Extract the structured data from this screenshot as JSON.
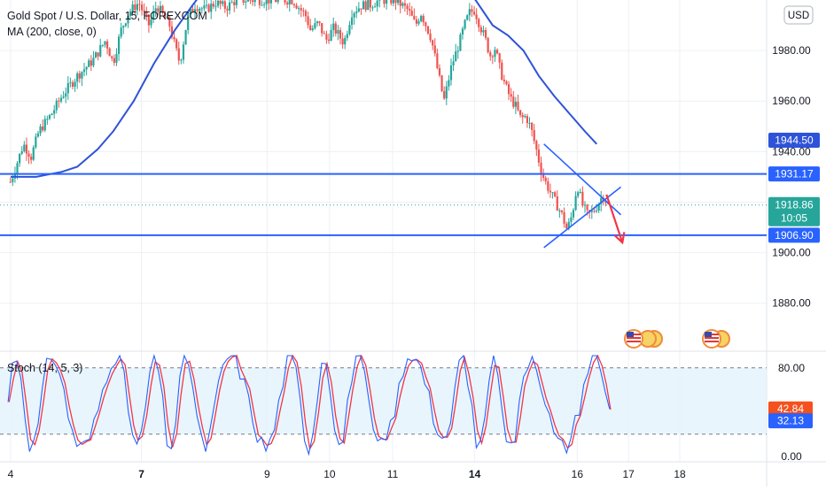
{
  "header": {
    "symbol_title": "Gold Spot / U.S. Dollar, 15, FOREXCOM",
    "indicator_ma": "MA (200, close, 0)",
    "currency_button": "USD"
  },
  "colors": {
    "up": "#26a69a",
    "down": "#ef5350",
    "ma": "#2e53d8",
    "hline": "#2962ff",
    "arrow": "#f23645",
    "stoch_k": "#2962ff",
    "stoch_d": "#f23645",
    "stoch_band": "#e3f2fd",
    "grid": "#eef0f4",
    "axis_text": "#131722"
  },
  "chart_data": [
    {
      "type": "candlestick",
      "title": "Gold Spot / U.S. Dollar, 15, FOREXCOM",
      "price_axis": {
        "ticks": [
          "1980.00",
          "1960.00",
          "1940.00",
          "1920.00",
          "1900.00",
          "1880.00"
        ],
        "ylim": [
          1861,
          2000
        ]
      },
      "time_axis": {
        "ticks": [
          "4",
          "7",
          "9",
          "10",
          "11",
          "14",
          "16",
          "17",
          "18"
        ]
      },
      "horizontal_levels": [
        {
          "label": "1931.17",
          "value": 1931.17
        },
        {
          "label": "1906.90",
          "value": 1906.9
        }
      ],
      "price_labels": {
        "ma_value": "1944.50",
        "last_price": "1918.86",
        "countdown": "10:05",
        "last_value": 1918.86
      },
      "price_path": [
        [
          4.0,
          1928
        ],
        [
          4.1,
          1934
        ],
        [
          4.25,
          1943
        ],
        [
          4.4,
          1938
        ],
        [
          4.55,
          1948
        ],
        [
          4.8,
          1955
        ],
        [
          5.0,
          1962
        ],
        [
          5.3,
          1970
        ],
        [
          5.6,
          1976
        ],
        [
          5.85,
          1984
        ],
        [
          6.0,
          1975
        ],
        [
          6.15,
          1988
        ],
        [
          6.3,
          1995
        ],
        [
          6.5,
          1999
        ],
        [
          6.7,
          1990
        ],
        [
          6.85,
          1998
        ],
        [
          7.0,
          1993
        ],
        [
          7.1,
          1990
        ],
        [
          7.2,
          1982
        ],
        [
          7.3,
          1975
        ],
        [
          7.45,
          1993
        ],
        [
          7.6,
          1998
        ],
        [
          7.8,
          1996
        ],
        [
          8.0,
          1999
        ],
        [
          8.2,
          1997
        ],
        [
          8.4,
          2000
        ],
        [
          9.5,
          2000
        ],
        [
          9.75,
          1994
        ],
        [
          9.85,
          1988
        ],
        [
          10.0,
          1991
        ],
        [
          10.15,
          1984
        ],
        [
          10.3,
          1989
        ],
        [
          10.5,
          1983
        ],
        [
          10.65,
          1995
        ],
        [
          10.85,
          1998
        ],
        [
          11.0,
          1998
        ],
        [
          11.2,
          2000
        ],
        [
          11.5,
          2000
        ],
        [
          11.75,
          1996
        ],
        [
          11.9,
          1990
        ],
        [
          12.0,
          1995
        ],
        [
          12.2,
          1985
        ],
        [
          12.35,
          1970
        ],
        [
          12.45,
          1960
        ],
        [
          12.6,
          1974
        ],
        [
          12.75,
          1983
        ],
        [
          12.85,
          1990
        ],
        [
          12.95,
          1995
        ],
        [
          13.05,
          1996
        ],
        [
          13.15,
          1990
        ],
        [
          13.25,
          1985
        ],
        [
          13.35,
          1978
        ],
        [
          13.45,
          1981
        ],
        [
          13.55,
          1972
        ],
        [
          13.65,
          1966
        ],
        [
          13.75,
          1961
        ],
        [
          13.85,
          1958
        ],
        [
          13.95,
          1953
        ],
        [
          14.05,
          1954
        ],
        [
          14.15,
          1949
        ],
        [
          14.25,
          1941
        ],
        [
          14.35,
          1932
        ],
        [
          14.45,
          1927
        ],
        [
          14.55,
          1923
        ],
        [
          14.65,
          1919
        ],
        [
          14.75,
          1915
        ],
        [
          14.85,
          1909
        ],
        [
          14.95,
          1915
        ],
        [
          15.05,
          1927
        ],
        [
          15.15,
          1919
        ],
        [
          15.25,
          1915
        ],
        [
          15.35,
          1916
        ],
        [
          15.45,
          1919
        ],
        [
          15.55,
          1923
        ],
        [
          15.65,
          1919
        ]
      ],
      "ma_series": [
        [
          4.0,
          1930
        ],
        [
          4.5,
          1930
        ],
        [
          5.0,
          1932
        ],
        [
          5.3,
          1934
        ],
        [
          5.7,
          1941
        ],
        [
          6.0,
          1948
        ],
        [
          6.4,
          1960
        ],
        [
          6.8,
          1975
        ],
        [
          7.2,
          1988
        ],
        [
          7.55,
          1998
        ],
        [
          7.7,
          2002
        ],
        [
          13.0,
          2002
        ],
        [
          13.4,
          1990
        ],
        [
          13.7,
          1986
        ],
        [
          14.0,
          1980
        ],
        [
          14.3,
          1970
        ],
        [
          14.6,
          1962
        ],
        [
          14.9,
          1955
        ],
        [
          15.2,
          1948
        ],
        [
          15.43,
          1943
        ]
      ],
      "trendlines": [
        {
          "from": [
            14.4,
            1943
          ],
          "to": [
            15.9,
            1915
          ]
        },
        {
          "from": [
            14.4,
            1902
          ],
          "to": [
            15.9,
            1926
          ]
        }
      ],
      "forecast_arrow": [
        [
          15.62,
          1923
        ],
        [
          15.93,
          1904
        ]
      ],
      "event_markers": [
        "us-flag-icon",
        "us-flag-icon"
      ]
    },
    {
      "type": "line",
      "title": "Stoch (14, 5, 3)",
      "ylim": [
        -5,
        95
      ],
      "ticks": [
        "80.00",
        "0.00"
      ],
      "levels": [
        80,
        20
      ],
      "value_labels": {
        "k": "42.84",
        "d": "32.13"
      },
      "k_last": 42.84,
      "d_last": 32.13
    }
  ]
}
